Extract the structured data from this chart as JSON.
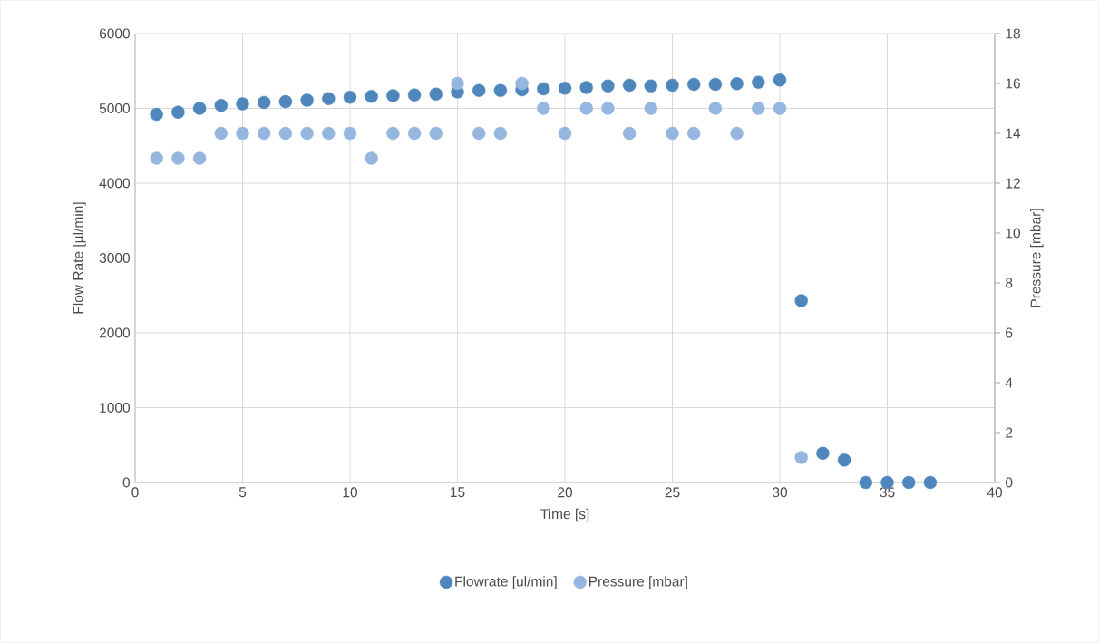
{
  "chart_data": {
    "type": "scatter",
    "xlabel": "Time [s]",
    "ylabel": "Flow Rate [µl/min]",
    "y2label": "Pressure [mbar]",
    "xlim": [
      0,
      40
    ],
    "xticks": [
      0,
      5,
      10,
      15,
      20,
      25,
      30,
      35,
      40
    ],
    "ylim": [
      0,
      6000
    ],
    "yticks": [
      0,
      1000,
      2000,
      3000,
      4000,
      5000,
      6000
    ],
    "y2lim": [
      0,
      18
    ],
    "y2ticks": [
      0,
      2,
      4,
      6,
      8,
      10,
      12,
      14,
      16,
      18
    ],
    "grid": true,
    "legend": "bottom",
    "marker": "circle",
    "series": [
      {
        "name": "Flowrate [ul/min]",
        "color": "#4f87bd",
        "x": [
          1,
          2,
          3,
          4,
          5,
          6,
          7,
          8,
          9,
          10,
          11,
          12,
          13,
          14,
          15,
          16,
          17,
          18,
          19,
          20,
          21,
          22,
          23,
          24,
          25,
          26,
          27,
          28,
          29,
          30,
          31,
          32,
          33,
          34,
          35,
          36,
          37
        ],
        "values": [
          4920,
          4950,
          5000,
          5040,
          5060,
          5080,
          5090,
          5110,
          5130,
          5150,
          5160,
          5170,
          5180,
          5190,
          5220,
          5240,
          5240,
          5250,
          5260,
          5270,
          5280,
          5300,
          5310,
          5300,
          5310,
          5320,
          5320,
          5330,
          5350,
          5380,
          2430,
          390,
          300,
          0,
          0,
          0,
          0
        ]
      },
      {
        "name": "Pressure [mbar]",
        "color": "#95b6de",
        "axis": "y2",
        "x": [
          1,
          2,
          3,
          4,
          5,
          6,
          7,
          8,
          9,
          10,
          11,
          12,
          13,
          14,
          15,
          16,
          17,
          18,
          19,
          20,
          21,
          22,
          23,
          24,
          25,
          26,
          27,
          28,
          29,
          30,
          31
        ],
        "values": [
          13,
          13,
          13,
          14,
          14,
          14,
          14,
          14,
          14,
          14,
          13,
          14,
          14,
          14,
          16,
          14,
          14,
          16,
          15,
          14,
          15,
          15,
          14,
          15,
          14,
          14,
          15,
          14,
          15,
          15,
          1
        ]
      }
    ]
  }
}
